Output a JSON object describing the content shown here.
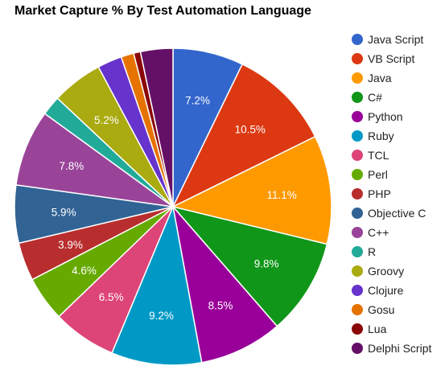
{
  "chart_data": {
    "type": "pie",
    "title": "Market Capture % By Test Automation Language",
    "legend_position": "right",
    "series": [
      {
        "name": "Java Script",
        "value": 7.2,
        "color": "#3366cc",
        "label": "7.2%"
      },
      {
        "name": "VB Script",
        "value": 10.5,
        "color": "#dc3912",
        "label": "10.5%"
      },
      {
        "name": "Java",
        "value": 11.1,
        "color": "#ff9900",
        "label": "11.1%"
      },
      {
        "name": "C#",
        "value": 9.8,
        "color": "#109618",
        "label": "9.8%"
      },
      {
        "name": "Python",
        "value": 8.5,
        "color": "#990099",
        "label": "8.5%"
      },
      {
        "name": "Ruby",
        "value": 9.2,
        "color": "#0099c6",
        "label": "9.2%"
      },
      {
        "name": "TCL",
        "value": 6.5,
        "color": "#dd4477",
        "label": "6.5%"
      },
      {
        "name": "Perl",
        "value": 4.6,
        "color": "#66aa00",
        "label": "4.6%"
      },
      {
        "name": "PHP",
        "value": 3.9,
        "color": "#b82e2e",
        "label": "3.9%"
      },
      {
        "name": "Objective C",
        "value": 5.9,
        "color": "#316395",
        "label": "5.9%"
      },
      {
        "name": "C++",
        "value": 7.8,
        "color": "#994499",
        "label": "7.8%"
      },
      {
        "name": "R",
        "value": 2.0,
        "color": "#22aa99",
        "label": ""
      },
      {
        "name": "Groovy",
        "value": 5.2,
        "color": "#aaaa11",
        "label": "5.2%"
      },
      {
        "name": "Clojure",
        "value": 2.5,
        "color": "#6633cc",
        "label": ""
      },
      {
        "name": "Gosu",
        "value": 1.3,
        "color": "#e67300",
        "label": ""
      },
      {
        "name": "Lua",
        "value": 0.7,
        "color": "#8b0707",
        "label": ""
      },
      {
        "name": "Delphi Script",
        "value": 3.3,
        "color": "#651067",
        "label": ""
      }
    ]
  }
}
